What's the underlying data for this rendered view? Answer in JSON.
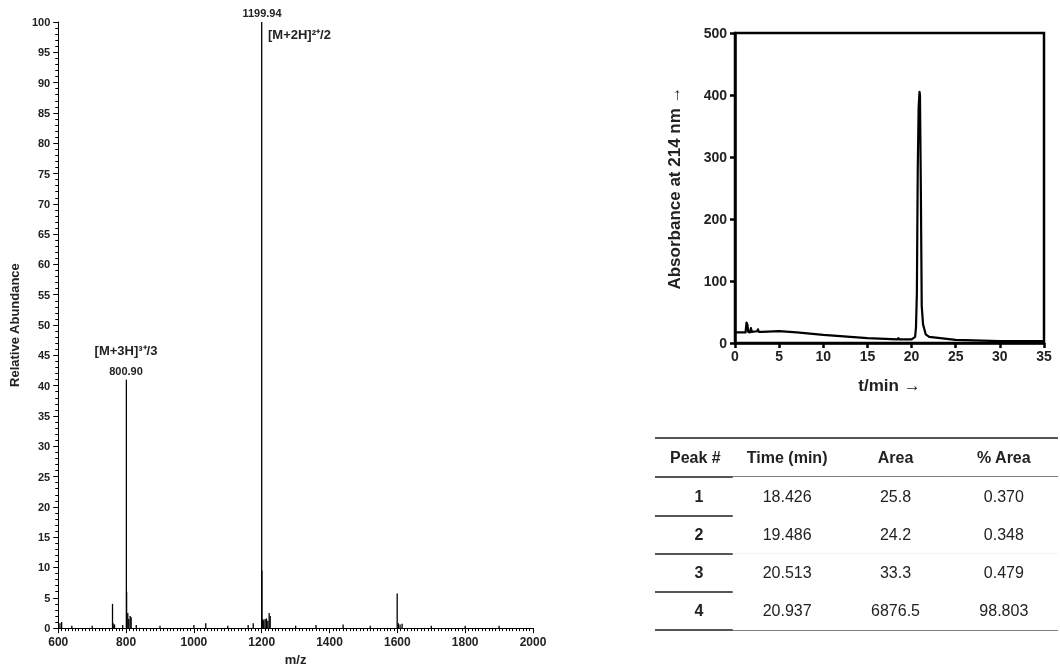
{
  "chart_data": [
    {
      "type": "bar",
      "xlabel": "m/z",
      "ylabel": "Relative Abundance",
      "color": "#000000",
      "x": [
        605,
        610,
        640,
        700,
        760,
        762,
        766,
        790,
        800.9,
        801.6,
        805,
        808,
        812,
        815,
        830,
        900,
        1000,
        1035,
        1100,
        1160,
        1175,
        1199.94,
        1200.6,
        1203,
        1206,
        1210,
        1214,
        1218,
        1222,
        1225,
        1300,
        1360,
        1440,
        1520,
        1599.5,
        1603,
        1608,
        1614,
        1700,
        1800,
        1900
      ],
      "values": [
        0.8,
        1.0,
        0.4,
        0.4,
        4.0,
        0.8,
        0.6,
        0.5,
        41,
        6,
        2.5,
        1.5,
        2.0,
        1.8,
        0.5,
        0.4,
        0.5,
        0.8,
        0.4,
        0.5,
        0.8,
        100,
        9.5,
        1.5,
        1.3,
        1.5,
        1.6,
        1.2,
        2.5,
        2.0,
        0.4,
        0.5,
        0.6,
        0.4,
        5.7,
        0.8,
        0.6,
        0.7,
        0.4,
        0.4,
        0.4
      ],
      "xlim": [
        600,
        2000
      ],
      "xticks": [
        600,
        800,
        1000,
        1200,
        1400,
        1600,
        1800,
        2000
      ],
      "ylim": [
        0,
        100
      ],
      "yticks": [
        0,
        5,
        10,
        15,
        20,
        25,
        30,
        35,
        40,
        45,
        50,
        55,
        60,
        65,
        70,
        75,
        80,
        85,
        90,
        95,
        100
      ],
      "grid": false,
      "annotations": [
        "1199.94",
        "[M+2H]²⁺/2",
        "800.90",
        "[M+3H]³⁺/3"
      ]
    },
    {
      "type": "line",
      "xlabel": "t/min →",
      "ylabel": "Absorbance at 214 nm →",
      "color": "#000000",
      "x": [
        0,
        1.2,
        1.3,
        1.4,
        1.5,
        1.7,
        1.8,
        1.9,
        2.5,
        2.6,
        2.7,
        3,
        5,
        7,
        10,
        15,
        18.4,
        18.5,
        18.6,
        19.5,
        20,
        20.4,
        20.5,
        20.6,
        20.7,
        20.8,
        20.9,
        20.95,
        21.05,
        21.15,
        21.3,
        21.6,
        22,
        25,
        30,
        35
      ],
      "values": [
        17,
        17,
        33,
        30,
        18,
        17,
        24,
        18,
        19,
        22,
        18,
        18,
        19,
        17,
        13,
        8,
        6,
        8,
        6,
        6,
        6,
        10,
        25,
        80,
        280,
        380,
        405,
        400,
        250,
        60,
        30,
        14,
        10,
        5,
        3,
        3
      ],
      "xlim": [
        0,
        35
      ],
      "xticks": [
        0,
        5,
        10,
        15,
        20,
        25,
        30,
        35
      ],
      "ylim": [
        0,
        500
      ],
      "yticks": [
        0,
        100,
        200,
        300,
        400,
        500
      ],
      "grid": false,
      "marker": "none",
      "line_style": "solid"
    },
    {
      "type": "heatmap",
      "ylabel": "Peak #",
      "categories": [
        "Time (min)",
        "Area",
        "% Area"
      ],
      "y_categories": [
        "1",
        "2",
        "3",
        "4"
      ],
      "cells": [
        [
          null,
          null,
          null
        ],
        [
          null,
          null,
          null
        ],
        [
          null,
          null,
          null
        ],
        [
          null,
          null,
          null
        ]
      ],
      "cell_labels": [
        [
          "18.426",
          "25.8",
          "0.370"
        ],
        [
          "19.486",
          "24.2",
          "0.348"
        ],
        [
          "20.513",
          "33.3",
          "0.479"
        ],
        [
          "20.937",
          "6876.5",
          "98.803"
        ]
      ]
    }
  ]
}
